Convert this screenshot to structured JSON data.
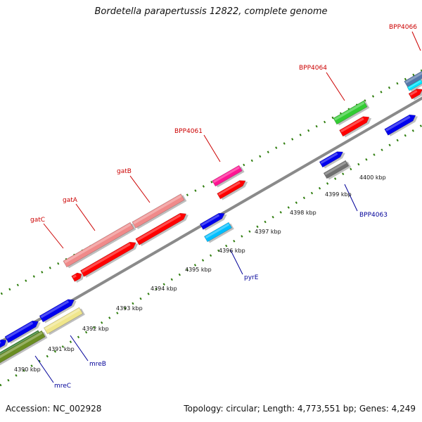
{
  "title": "Bordetella parapertussis 12822, complete genome",
  "footer": {
    "accession": "Accession: NC_002928",
    "topology": "Topology: circular; Length: 4,773,551 bp; Genes: 4,249"
  },
  "colors": {
    "label_top": "#cc0000",
    "label_bottom": "#000099",
    "tick_mark": "#2e7d0d",
    "backbone": "#8a8a8a"
  },
  "ticks": [
    "4390 kbp",
    "4391 kbp",
    "4392 kbp",
    "4393 kbp",
    "4394 kbp",
    "4395 kbp",
    "4396 kbp",
    "4397 kbp",
    "4398 kbp",
    "4399 kbp",
    "4400 kbp"
  ],
  "gene_labels_top": [
    "gatC",
    "gatA",
    "gatB",
    "BPP4061",
    "BPP4064",
    "BPP4066"
  ],
  "gene_labels_bottom": [
    "mreC",
    "mreB",
    "pyrE",
    "BPP4063"
  ],
  "features": [
    {
      "track": "outer",
      "color": "#2c7a23",
      "name": "green-block"
    },
    {
      "track": "outer",
      "color": "#f08a8a",
      "name": "gatA-outer"
    },
    {
      "track": "outer",
      "color": "#f08a8a",
      "name": "gatB-outer"
    },
    {
      "track": "outer",
      "color": "#ff1493",
      "name": "BPP4061-outer"
    },
    {
      "track": "outer",
      "color": "#33cc33",
      "name": "BPP4064-outer"
    },
    {
      "track": "outer",
      "color": "#5577aa",
      "name": "BPP4066-outer"
    },
    {
      "track": "inner-top",
      "color": "#ff0000",
      "name": "gatC-inner"
    },
    {
      "track": "inner-top",
      "color": "#ff0000",
      "name": "gatA-inner"
    },
    {
      "track": "inner-top",
      "color": "#ff0000",
      "name": "gatB-inner"
    },
    {
      "track": "inner-top",
      "color": "#ff0000",
      "name": "BPP4061-inner"
    },
    {
      "track": "inner-top",
      "color": "#ff0000",
      "name": "BPP4064-inner"
    },
    {
      "track": "inner-top",
      "color": "#ff0000",
      "name": "BPP4066-inner"
    },
    {
      "track": "inner-top",
      "color": "#00e5ff",
      "name": "BPP4066-cyan"
    },
    {
      "track": "inner-bottom",
      "color": "#0000ee",
      "name": "blue-left"
    },
    {
      "track": "inner-bottom",
      "color": "#0000ee",
      "name": "mreC"
    },
    {
      "track": "inner-bottom",
      "color": "#0000ee",
      "name": "mreB-blue"
    },
    {
      "track": "inner-bottom",
      "color": "#0000ee",
      "name": "pyrE-blue"
    },
    {
      "track": "inner-bottom",
      "color": "#0000ee",
      "name": "BPP4063-blue"
    },
    {
      "track": "inner-bottom",
      "color": "#0000ee",
      "name": "right-blue"
    },
    {
      "track": "outer-bottom",
      "color": "#6b8e23",
      "name": "mreC-olive"
    },
    {
      "track": "outer-bottom",
      "color": "#f0e68c",
      "name": "mreB-khaki"
    },
    {
      "track": "outer-bottom",
      "color": "#00bfff",
      "name": "pyrE-cyan"
    },
    {
      "track": "outer-bottom",
      "color": "#707070",
      "name": "BPP4063-gray"
    }
  ]
}
